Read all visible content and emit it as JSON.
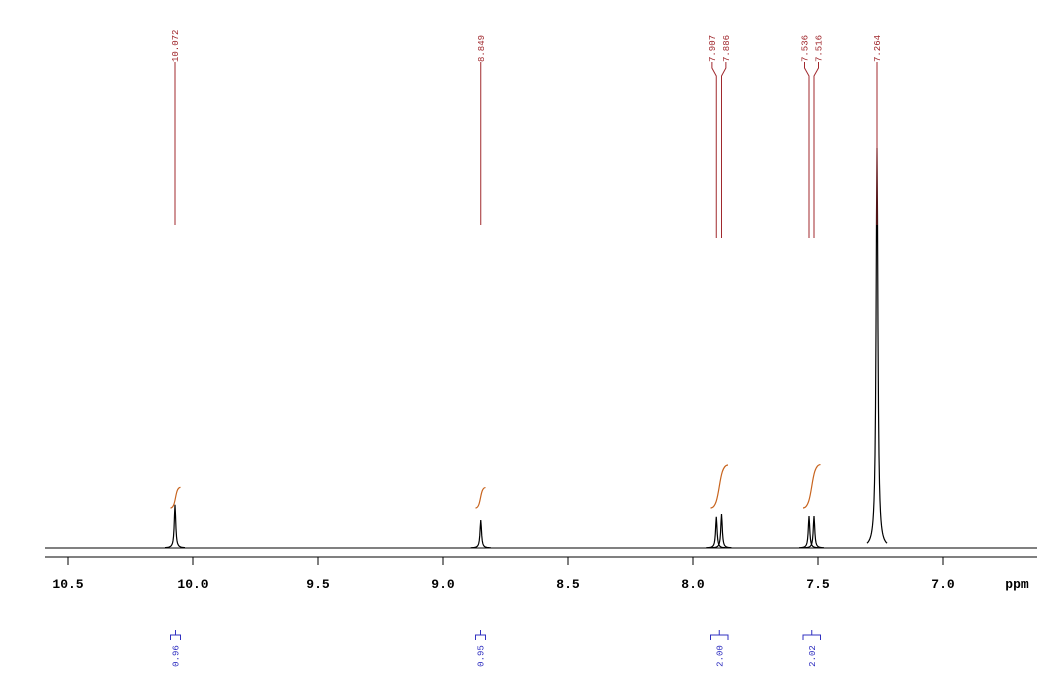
{
  "chart_data": {
    "type": "spectrum",
    "x_label": "ppm",
    "xlim": [
      10.592,
      6.624
    ],
    "xticks": [
      10.5,
      {
        "value": 10,
        "label": "10.0"
      },
      9.5,
      {
        "value": 9,
        "label": "9.0"
      },
      8.5,
      {
        "value": 8,
        "label": "8.0"
      },
      7.5,
      {
        "value": 7,
        "label": "7.0"
      }
    ],
    "ylim": [
      0,
      100
    ],
    "x": [
      10.072,
      8.849,
      7.907,
      7.886,
      7.536,
      7.516,
      7.264
    ],
    "values": [
      10.8,
      7,
      7.8,
      8.5,
      8,
      8,
      100
    ],
    "color": "#000000",
    "peak_label_color": "#a0282d",
    "integrals": {
      "x": [
        [
          10.09,
          10.05
        ],
        [
          8.87,
          8.83
        ],
        [
          7.93,
          7.86
        ],
        [
          7.56,
          7.49
        ]
      ],
      "values": [
        0.96,
        0.95,
        2,
        2.02
      ],
      "value_labels": [
        "0.96",
        "0.95",
        "2.00",
        "2.02"
      ],
      "color": "#c8641e",
      "label_color": "#3030c0"
    }
  }
}
